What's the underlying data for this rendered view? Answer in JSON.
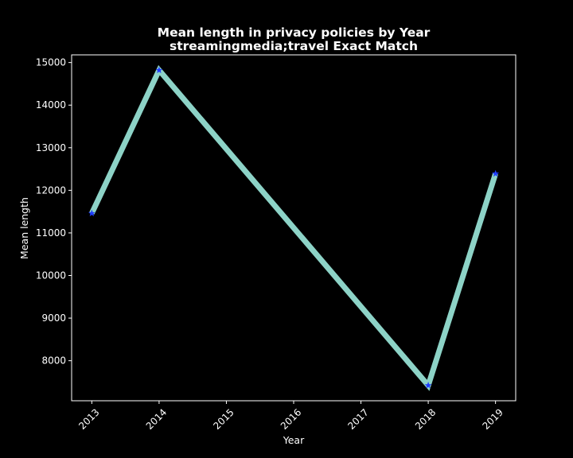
{
  "chart_data": {
    "type": "line",
    "title": "Mean length in privacy policies by Year",
    "subtitle": "streamingmedia;travel Exact Match",
    "xlabel": "Year",
    "ylabel": "Mean length",
    "x_ticks": [
      2013,
      2014,
      2015,
      2016,
      2017,
      2018,
      2019
    ],
    "y_ticks": [
      8000,
      9000,
      10000,
      11000,
      12000,
      13000,
      14000,
      15000
    ],
    "xlim": [
      2012.7,
      2019.3
    ],
    "ylim": [
      7060,
      15180
    ],
    "grid": false,
    "series": [
      {
        "x": [
          2013,
          2014,
          2018,
          2019
        ],
        "y": [
          11460,
          14820,
          7420,
          12390
        ]
      }
    ],
    "colors": {
      "background": "#000000",
      "line": "#8dd3c7",
      "marker": "#1f3cff",
      "axis": "#ffffff"
    }
  }
}
